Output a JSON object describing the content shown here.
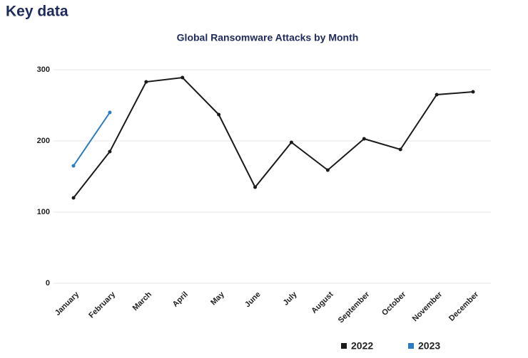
{
  "header": {
    "title": "Key data"
  },
  "chart_data": {
    "type": "line",
    "title": "Global Ransomware Attacks by Month",
    "categories": [
      "January",
      "February",
      "March",
      "April",
      "May",
      "June",
      "July",
      "August",
      "September",
      "October",
      "November",
      "December"
    ],
    "series": [
      {
        "name": "2022",
        "color": "#1a1a1a",
        "values": [
          120,
          185,
          283,
          289,
          237,
          135,
          198,
          159,
          203,
          188,
          265,
          269
        ]
      },
      {
        "name": "2023",
        "color": "#2a7bbf",
        "values": [
          165,
          240,
          null,
          null,
          null,
          null,
          null,
          null,
          null,
          null,
          null,
          null
        ]
      }
    ],
    "ylim": [
      0,
      300
    ],
    "yticks": [
      0,
      100,
      200,
      300
    ],
    "grid": true,
    "legend": "bottom-right"
  }
}
